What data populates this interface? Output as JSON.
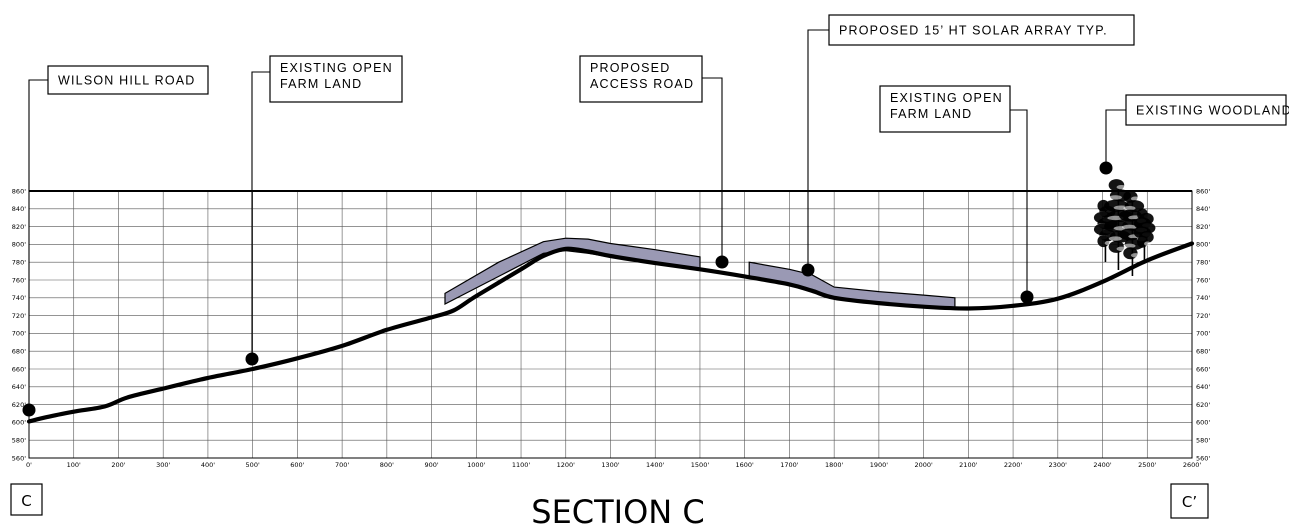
{
  "title": "SECTION C",
  "section_markers": {
    "left": "C",
    "right": "C’"
  },
  "colors": {
    "line": "#000000",
    "grid": "#555555",
    "fill": "#9a99b4"
  },
  "callouts": [
    {
      "id": "wilson-hill-road",
      "lines": [
        "WILSON HILL ROAD"
      ],
      "station": 0
    },
    {
      "id": "existing-open-farm-land-1",
      "lines": [
        "EXISTING OPEN",
        "FARM LAND"
      ],
      "station": 500
    },
    {
      "id": "proposed-access-road",
      "lines": [
        "PROPOSED",
        "ACCESS ROAD"
      ],
      "station": 1550
    },
    {
      "id": "proposed-solar-array",
      "lines": [
        "PROPOSED 15’ HT SOLAR ARRAY TYP."
      ],
      "station": 1750
    },
    {
      "id": "existing-open-farm-land-2",
      "lines": [
        "EXISTING OPEN",
        "FARM LAND"
      ],
      "station": 2240
    },
    {
      "id": "existing-woodland",
      "lines": [
        "EXISTING WOODLAND"
      ],
      "station": 2420
    }
  ],
  "chart_data": {
    "type": "line",
    "xlabel": "",
    "ylabel": "",
    "xlim": [
      0,
      2600
    ],
    "ylim": [
      560,
      860
    ],
    "x_ticks": [
      "0'",
      "100'",
      "200'",
      "300'",
      "400'",
      "500'",
      "600'",
      "700'",
      "800'",
      "900'",
      "1000'",
      "1100'",
      "1200'",
      "1300'",
      "1400'",
      "1500'",
      "1600'",
      "1700'",
      "1800'",
      "1900'",
      "2000'",
      "2100'",
      "2200'",
      "2300'",
      "2400'",
      "2500'",
      "2600'"
    ],
    "y_ticks": [
      "560'",
      "580'",
      "600'",
      "620'",
      "640'",
      "660'",
      "680'",
      "700'",
      "720'",
      "740'",
      "760'",
      "780'",
      "800'",
      "820'",
      "840'",
      "860'"
    ],
    "series": [
      {
        "x": [
          0,
          40,
          100,
          170,
          220,
          300,
          400,
          500,
          600,
          700,
          800,
          900,
          950,
          1000,
          1100,
          1150,
          1200,
          1250,
          1300,
          1400,
          1500,
          1600,
          1700,
          1750,
          1800,
          1900,
          2000,
          2100,
          2200,
          2300,
          2400,
          2500,
          2600
        ],
        "y": [
          601,
          606,
          612,
          618,
          628,
          638,
          650,
          660,
          672,
          686,
          704,
          718,
          726,
          742,
          772,
          787,
          795,
          792,
          787,
          779,
          772,
          764,
          755,
          748,
          740,
          734,
          730,
          728,
          731,
          739,
          758,
          782,
          801
        ]
      }
    ],
    "proposed_grading": [
      {
        "name": "",
        "x": [
          930,
          1050,
          1150,
          1200,
          1250,
          1300,
          1400,
          1500,
          1500,
          1400,
          1300,
          1250,
          1200,
          1150,
          1050,
          930
        ],
        "y": [
          745,
          780,
          803,
          807,
          806,
          801,
          794,
          786,
          773,
          779,
          786,
          790,
          793,
          790,
          764,
          733
        ]
      },
      {
        "name": "",
        "x": [
          1610,
          1700,
          1750,
          1800,
          1900,
          2000,
          2070,
          2070,
          2000,
          1900,
          1800,
          1750,
          1700,
          1610
        ],
        "y": [
          780,
          772,
          766,
          752,
          747,
          743,
          740,
          728,
          729,
          734,
          740,
          748,
          755,
          764
        ]
      }
    ],
    "trees_station": 2440,
    "grid": true
  }
}
